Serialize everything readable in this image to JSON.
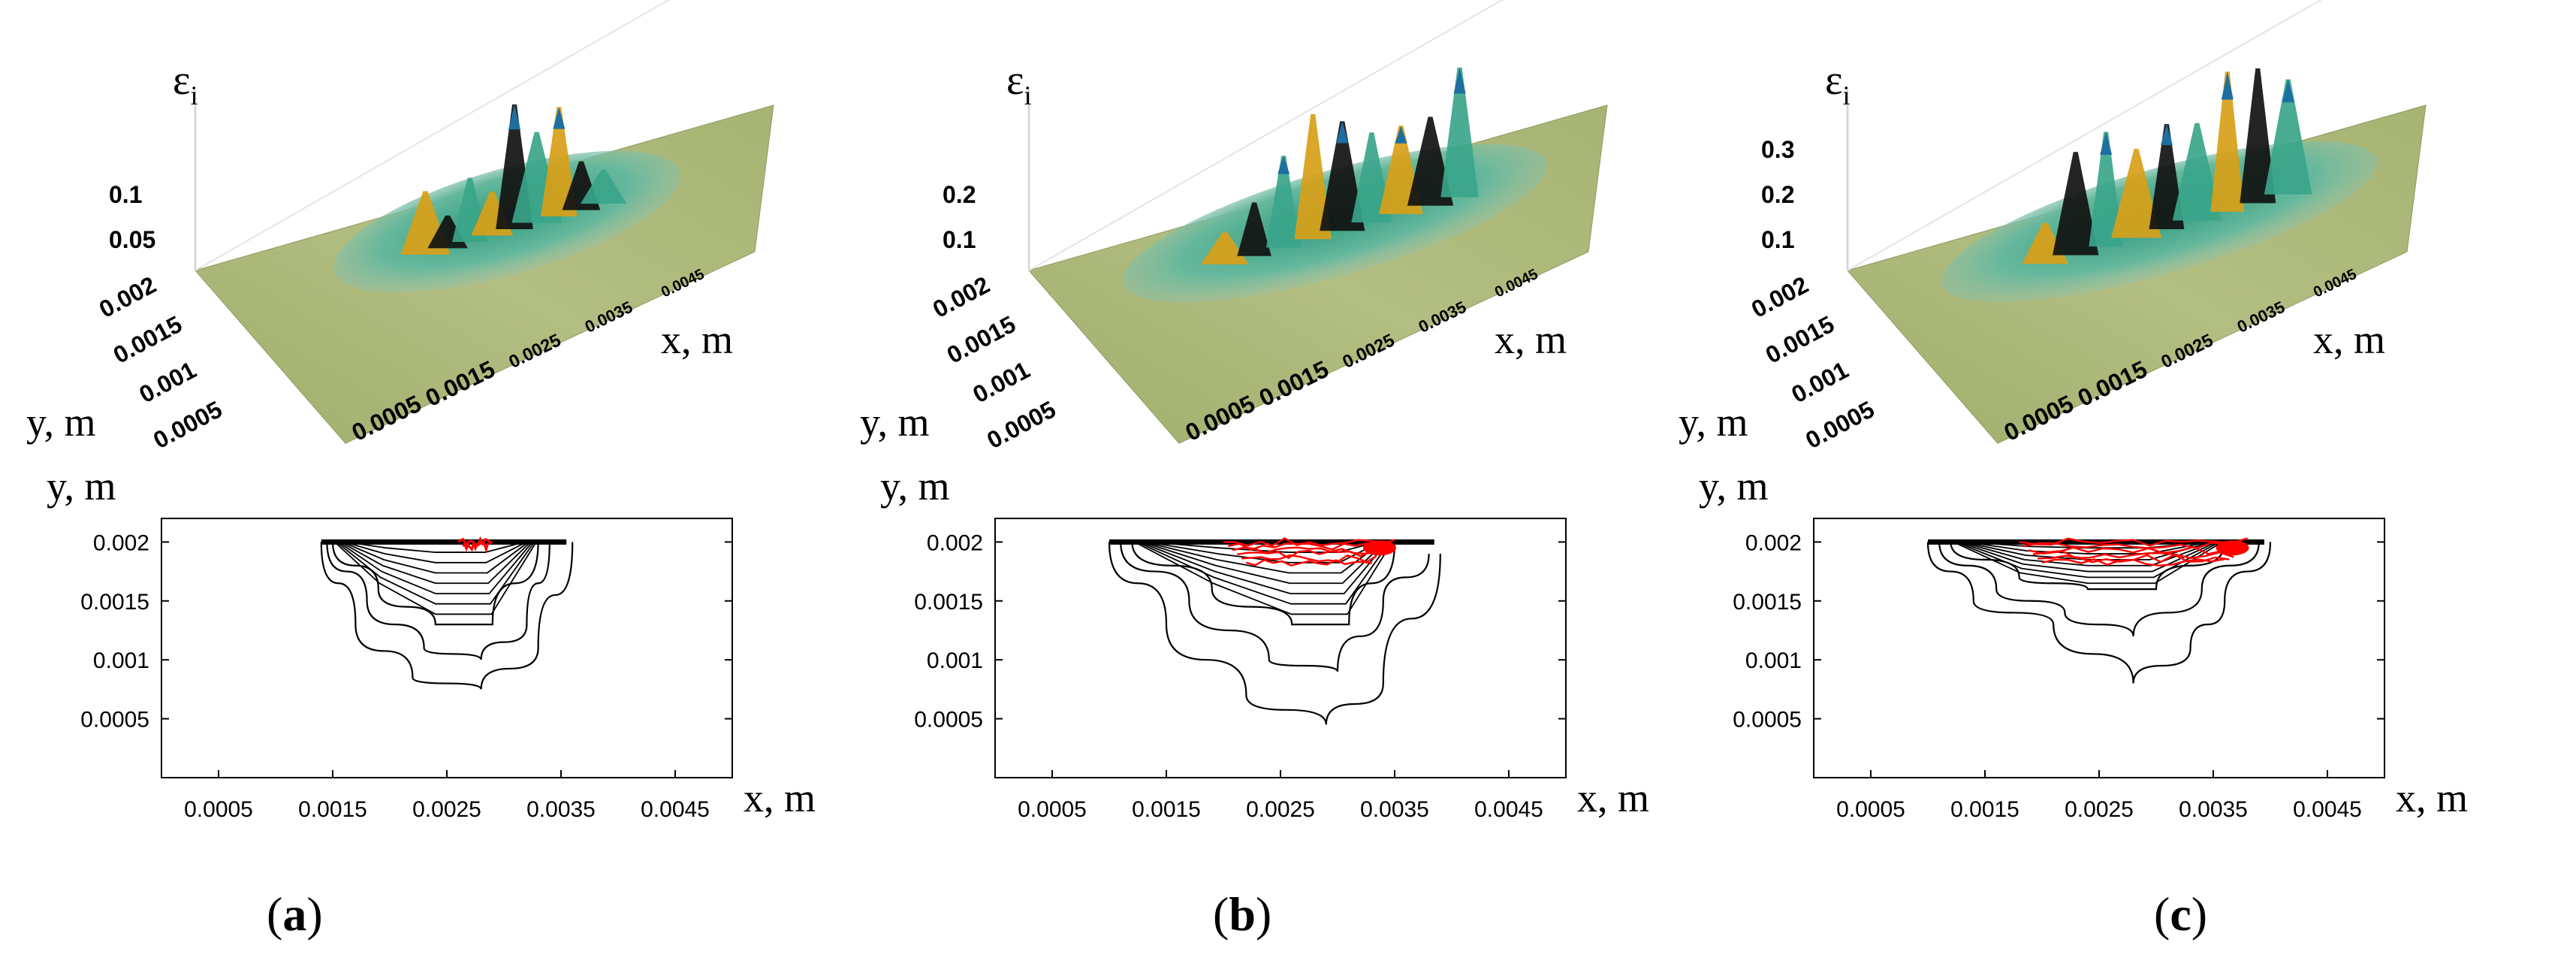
{
  "panels": [
    {
      "caption_letter": "a",
      "surface": {
        "z_label": "ε",
        "z_label_sub": "i",
        "z_ticks": [
          "0.1",
          "0.05"
        ],
        "y_ticks": [
          "0.002",
          "0.0015",
          "0.001",
          "0.0005"
        ],
        "x_ticks": [
          "0.0005",
          "0.0015",
          "0.0025",
          "0.0035",
          "0.0045"
        ],
        "x_label": "x, m",
        "y_label": "y, m"
      },
      "contour": {
        "y_label": "y, m",
        "x_label": "x, m",
        "y_ticks": [
          "0.002",
          "0.0015",
          "0.001",
          "0.0005"
        ],
        "x_ticks": [
          "0.0005",
          "0.0015",
          "0.0025",
          "0.0035",
          "0.0045"
        ]
      }
    },
    {
      "caption_letter": "b",
      "surface": {
        "z_label": "ε",
        "z_label_sub": "i",
        "z_ticks": [
          "0.2",
          "0.1"
        ],
        "y_ticks": [
          "0.002",
          "0.0015",
          "0.001",
          "0.0005"
        ],
        "x_ticks": [
          "0.0005",
          "0.0015",
          "0.0025",
          "0.0035",
          "0.0045"
        ],
        "x_label": "x, m",
        "y_label": "y, m"
      },
      "contour": {
        "y_label": "y, m",
        "x_label": "x, m",
        "y_ticks": [
          "0.002",
          "0.0015",
          "0.001",
          "0.0005"
        ],
        "x_ticks": [
          "0.0005",
          "0.0015",
          "0.0025",
          "0.0035",
          "0.0045"
        ]
      }
    },
    {
      "caption_letter": "c",
      "surface": {
        "z_label": "ε",
        "z_label_sub": "i",
        "z_ticks": [
          "0.3",
          "0.2",
          "0.1"
        ],
        "y_ticks": [
          "0.002",
          "0.0015",
          "0.001",
          "0.0005"
        ],
        "x_ticks": [
          "0.0005",
          "0.0015",
          "0.0025",
          "0.0035",
          "0.0045"
        ],
        "x_label": "x, m",
        "y_label": "y, m"
      },
      "contour": {
        "y_label": "y, m",
        "x_label": "x, m",
        "y_ticks": [
          "0.002",
          "0.0015",
          "0.001",
          "0.0005"
        ],
        "x_ticks": [
          "0.0005",
          "0.0015",
          "0.0025",
          "0.0035",
          "0.0045"
        ]
      }
    }
  ],
  "colors": {
    "plane": "#a7b574",
    "peak_green": "#3aa58a",
    "peak_yellow": "#d8a018",
    "peak_dark": "#111111",
    "peak_blue": "#1e6fa0",
    "contour_black": "#000000",
    "contour_red": "#ff0000"
  },
  "chart_data": [
    {
      "type": "heatmap",
      "panel": "a",
      "xlabel": "x, m",
      "ylabel": "y, m",
      "zlabel": "εi",
      "xlim": [
        0,
        0.005
      ],
      "ylim": [
        0,
        0.0022
      ],
      "zlim": [
        0,
        0.12
      ],
      "x_ticks": [
        0.0005,
        0.0015,
        0.0025,
        0.0035,
        0.0045
      ],
      "y_ticks": [
        0.0005,
        0.001,
        0.0015,
        0.002
      ],
      "z_ticks": [
        0.05,
        0.1
      ],
      "zone_x_range": [
        0.0014,
        0.0036
      ],
      "zone_min_y": 0.00075,
      "contour_outlines": [
        {
          "x": [
            0.0014,
            0.0017,
            0.0022,
            0.0028,
            0.0033,
            0.0036
          ],
          "y": [
            0.002,
            0.0013,
            0.00085,
            0.00075,
            0.0011,
            0.002
          ]
        },
        {
          "x": [
            0.00145,
            0.0018,
            0.0023,
            0.0028,
            0.0032,
            0.0034
          ],
          "y": [
            0.002,
            0.0015,
            0.0011,
            0.001,
            0.0013,
            0.002
          ]
        },
        {
          "x": [
            0.0015,
            0.0019,
            0.0024,
            0.0029,
            0.0033
          ],
          "y": [
            0.002,
            0.0016,
            0.0013,
            0.0013,
            0.002
          ]
        }
      ],
      "peak_region_x": [
        0.0026,
        0.0029
      ],
      "peak_max": 0.12
    },
    {
      "type": "heatmap",
      "panel": "b",
      "xlabel": "x, m",
      "ylabel": "y, m",
      "zlabel": "εi",
      "xlim": [
        0,
        0.005
      ],
      "ylim": [
        0,
        0.0022
      ],
      "zlim": [
        0,
        0.28
      ],
      "x_ticks": [
        0.0005,
        0.0015,
        0.0025,
        0.0035,
        0.0045
      ],
      "y_ticks": [
        0.0005,
        0.001,
        0.0015,
        0.002
      ],
      "z_ticks": [
        0.1,
        0.2
      ],
      "zone_x_range": [
        0.001,
        0.0039
      ],
      "zone_min_y": 0.00045,
      "contour_outlines": [
        {
          "x": [
            0.001,
            0.0015,
            0.0022,
            0.0029,
            0.0034,
            0.0039
          ],
          "y": [
            0.002,
            0.0013,
            0.0007,
            0.00045,
            0.0008,
            0.0019
          ]
        },
        {
          "x": [
            0.0011,
            0.0017,
            0.0024,
            0.003,
            0.0034,
            0.0038
          ],
          "y": [
            0.002,
            0.0015,
            0.001,
            0.0009,
            0.0015,
            0.0019
          ]
        },
        {
          "x": [
            0.0012,
            0.0019,
            0.0026,
            0.0031,
            0.0035
          ],
          "y": [
            0.002,
            0.0016,
            0.0013,
            0.0013,
            0.002
          ]
        }
      ],
      "peak_region_x": [
        0.002,
        0.0035
      ],
      "peak_max": 0.26
    },
    {
      "type": "heatmap",
      "panel": "c",
      "xlabel": "x, m",
      "ylabel": "y, m",
      "zlabel": "εi",
      "xlim": [
        0,
        0.005
      ],
      "ylim": [
        0,
        0.0022
      ],
      "zlim": [
        0,
        0.36
      ],
      "x_ticks": [
        0.0005,
        0.0015,
        0.0025,
        0.0035,
        0.0045
      ],
      "y_ticks": [
        0.0005,
        0.001,
        0.0015,
        0.002
      ],
      "z_ticks": [
        0.1,
        0.2,
        0.3
      ],
      "zone_x_range": [
        0.001,
        0.004
      ],
      "zone_min_y": 0.00075,
      "contour_outlines": [
        {
          "x": [
            0.001,
            0.0014,
            0.0021,
            0.0028,
            0.0033,
            0.0036,
            0.004
          ],
          "y": [
            0.002,
            0.0015,
            0.0013,
            0.0008,
            0.0011,
            0.0015,
            0.002
          ]
        },
        {
          "x": [
            0.0011,
            0.0016,
            0.0022,
            0.0028,
            0.0034,
            0.0039
          ],
          "y": [
            0.002,
            0.0016,
            0.0014,
            0.0012,
            0.0016,
            0.002
          ]
        },
        {
          "x": [
            0.0012,
            0.0018,
            0.0024,
            0.003,
            0.0036
          ],
          "y": [
            0.002,
            0.0017,
            0.0016,
            0.0016,
            0.002
          ]
        }
      ],
      "peak_region_x": [
        0.0018,
        0.0038
      ],
      "peak_max": 0.34
    }
  ]
}
